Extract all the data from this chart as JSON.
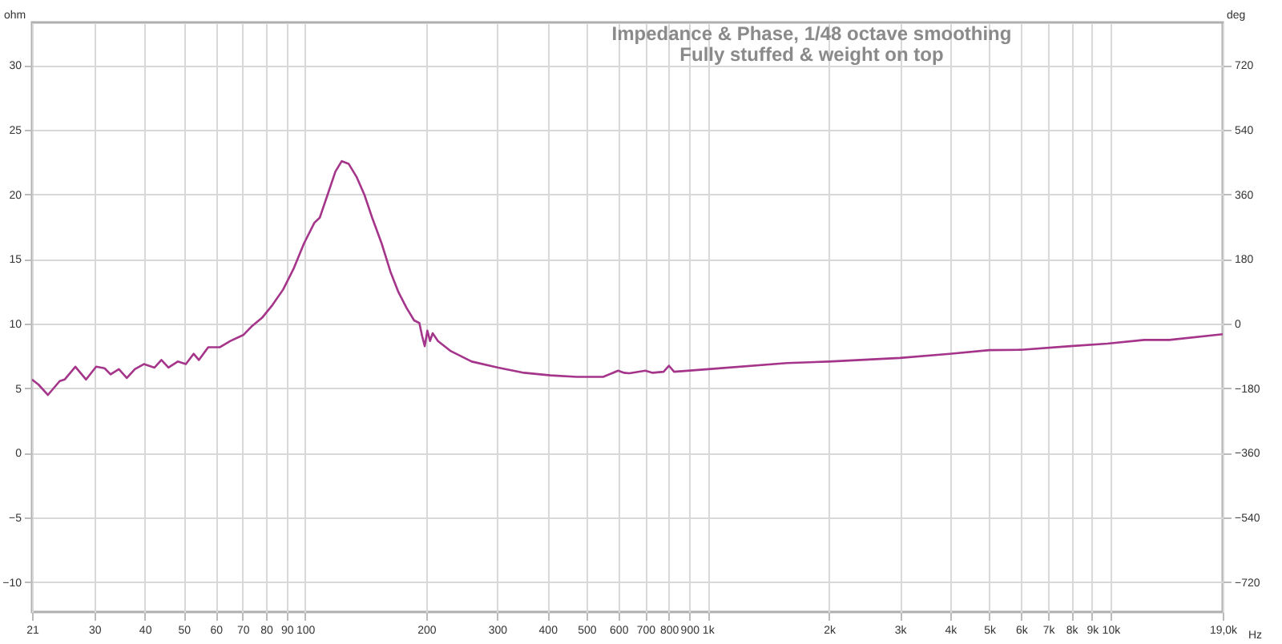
{
  "chart_data": {
    "type": "line",
    "title": "Impedance & Phase, 1/48 octave smoothing",
    "subtitle": "Fully stuffed & weight on top",
    "xlabel": "Hz",
    "ylabel": "ohm",
    "y2label": "deg",
    "log": "x",
    "grid": true,
    "xlim": [
      21,
      19000
    ],
    "xticks": [
      21,
      30,
      40,
      50,
      60,
      70,
      80,
      90,
      100,
      200,
      300,
      400,
      500,
      600,
      700,
      800,
      900,
      {
        "value": 1000,
        "label": "1k"
      },
      {
        "value": 2000,
        "label": "2k"
      },
      {
        "value": 3000,
        "label": "3k"
      },
      {
        "value": 4000,
        "label": "4k"
      },
      {
        "value": 5000,
        "label": "5k"
      },
      {
        "value": 6000,
        "label": "6k"
      },
      {
        "value": 7000,
        "label": "7k"
      },
      {
        "value": 8000,
        "label": "8k"
      },
      {
        "value": 9000,
        "label": "9k"
      },
      {
        "value": 10000,
        "label": "10k"
      },
      {
        "value": 19000,
        "label": "19,0k"
      }
    ],
    "ylim": [
      -12.3,
      33.3
    ],
    "yticks": [
      -10,
      -5,
      0,
      5,
      10,
      15,
      20,
      25,
      30
    ],
    "y2lim": [
      -803,
      839
    ],
    "y2ticks": [
      -720,
      -540,
      -360,
      -180,
      0,
      180,
      360,
      540,
      720
    ],
    "x": [
      21,
      21.8,
      23,
      24.6,
      25.3,
      26.9,
      28.6,
      30.3,
      31.8,
      32.9,
      34.5,
      36.1,
      37.8,
      39.8,
      42.3,
      44,
      45.8,
      48.3,
      50.6,
      52.9,
      54.5,
      57.5,
      61.5,
      65.3,
      70.4,
      73.6,
      78.2,
      83,
      88.2,
      93.6,
      99.4,
      105.5,
      108.8,
      113.8,
      119,
      123.4,
      128.3,
      134.2,
      140.4,
      146.8,
      155,
      163,
      170.6,
      178.6,
      186.6,
      192.3,
      195.3,
      198.3,
      201.3,
      204.4,
      207.5,
      213.8,
      230.3,
      259.4,
      302,
      350,
      407,
      473,
      550,
      599,
      620,
      639,
      700,
      730,
      777,
      801,
      825,
      1003,
      1573,
      2001,
      3000,
      3990,
      5000,
      5985,
      7960,
      9820,
      12120,
      14000,
      19000
    ],
    "series": [
      {
        "color": "#a4358a",
        "values": [
          5.68,
          5.28,
          4.49,
          5.56,
          5.68,
          6.67,
          5.68,
          6.67,
          6.55,
          6.08,
          6.48,
          5.8,
          6.48,
          6.87,
          6.6,
          7.19,
          6.6,
          7.07,
          6.87,
          7.67,
          7.19,
          8.18,
          8.18,
          8.66,
          9.14,
          9.77,
          10.45,
          11.44,
          12.63,
          14.22,
          16.2,
          17.8,
          18.2,
          19.98,
          21.77,
          22.57,
          22.37,
          21.37,
          19.98,
          18.2,
          16.2,
          14.02,
          12.44,
          11.24,
          10.25,
          10.05,
          9.06,
          8.26,
          9.46,
          8.66,
          9.26,
          8.66,
          7.87,
          7.07,
          6.6,
          6.2,
          6,
          5.88,
          5.88,
          6.36,
          6.2,
          6.16,
          6.36,
          6.2,
          6.28,
          6.75,
          6.28,
          6.48,
          6.95,
          7.07,
          7.35,
          7.67,
          7.95,
          7.98,
          8.26,
          8.46,
          8.74,
          8.74,
          9.18
        ]
      }
    ]
  }
}
